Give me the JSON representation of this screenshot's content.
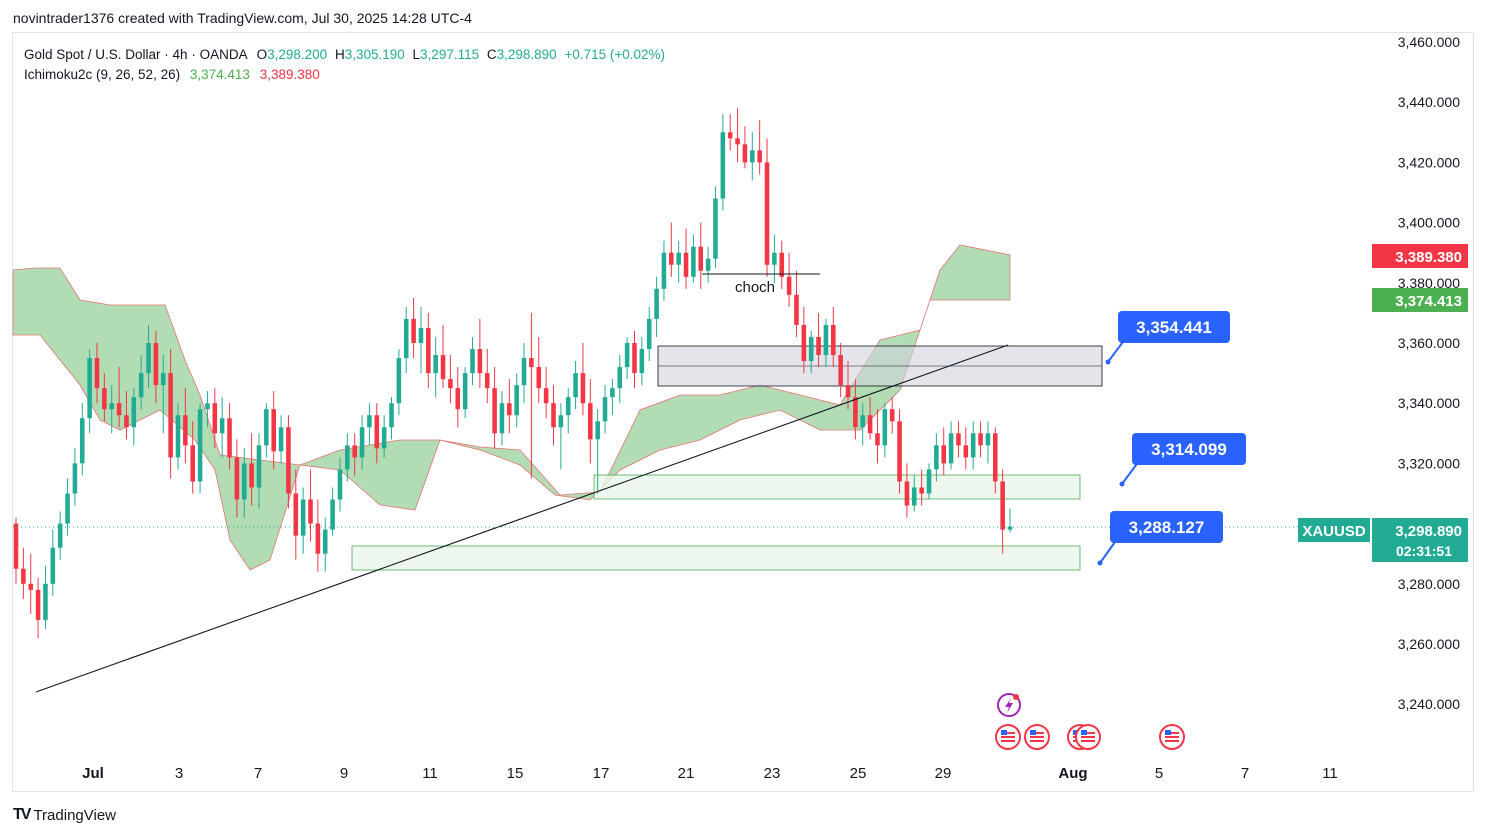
{
  "header": {
    "credit": "novintrader1376 created with TradingView.com, Jul 30, 2025 14:28 UTC-4"
  },
  "legend": {
    "symbol_line": "Gold Spot / U.S. Dollar · 4h · OANDA",
    "o_label": "O",
    "o_value": "3,298.200",
    "h_label": "H",
    "h_value": "3,305.190",
    "l_label": "L",
    "l_value": "3,297.115",
    "c_label": "C",
    "c_value": "3,298.890",
    "change": "+0.715 (+0.02%)",
    "indicator_name": "Ichimoku2c (9, 26, 52, 26)",
    "indicator_a": "3,374.413",
    "indicator_b": "3,389.380"
  },
  "price_axis": {
    "ticks": [
      "3,460.000",
      "3,440.000",
      "3,420.000",
      "3,400.000",
      "3,380.000",
      "3,360.000",
      "3,340.000",
      "3,320.000",
      "3,280.000",
      "3,260.000",
      "3,240.000"
    ],
    "badge_red": "3,389.380",
    "badge_green": "3,374.413",
    "symbol_badge": "XAUUSD",
    "last_price": "3,298.890",
    "countdown": "02:31:51"
  },
  "time_axis": {
    "ticks": [
      "Jul",
      "3",
      "7",
      "9",
      "11",
      "15",
      "17",
      "21",
      "23",
      "25",
      "29",
      "Aug",
      "5",
      "7",
      "11"
    ]
  },
  "annotations": {
    "choch": "choch",
    "callout_1": "3,354.441",
    "callout_2": "3,314.099",
    "callout_3": "3,288.127"
  },
  "footer": {
    "brand": "TradingView",
    "mark": "TV"
  },
  "colors": {
    "up": "#22ab94",
    "down": "#f23645",
    "cloud": "#a5d6a7",
    "zone_green": "#e8f5e9",
    "zone_gray": "#d1d4dc",
    "callout": "#2962ff",
    "badge_red": "#f23645",
    "badge_green": "#4caf50"
  },
  "chart_data": {
    "type": "candlestick",
    "title": "Gold Spot / U.S. Dollar · 4h · OANDA",
    "y_range": [
      3230,
      3465
    ],
    "ohlc_last": {
      "open": 3298.2,
      "high": 3305.19,
      "low": 3297.115,
      "close": 3298.89
    },
    "candles": [
      [
        3300,
        3302,
        3280,
        3285
      ],
      [
        3285,
        3292,
        3275,
        3280
      ],
      [
        3280,
        3290,
        3270,
        3278
      ],
      [
        3278,
        3282,
        3262,
        3268
      ],
      [
        3268,
        3286,
        3265,
        3280
      ],
      [
        3280,
        3298,
        3276,
        3292
      ],
      [
        3292,
        3304,
        3288,
        3300
      ],
      [
        3300,
        3315,
        3296,
        3310
      ],
      [
        3310,
        3325,
        3306,
        3320
      ],
      [
        3320,
        3340,
        3316,
        3335
      ],
      [
        3335,
        3358,
        3330,
        3355
      ],
      [
        3355,
        3360,
        3340,
        3345
      ],
      [
        3345,
        3350,
        3334,
        3338
      ],
      [
        3338,
        3346,
        3330,
        3340
      ],
      [
        3340,
        3352,
        3332,
        3336
      ],
      [
        3336,
        3344,
        3328,
        3332
      ],
      [
        3332,
        3345,
        3326,
        3342
      ],
      [
        3342,
        3356,
        3338,
        3350
      ],
      [
        3350,
        3366,
        3345,
        3360
      ],
      [
        3360,
        3364,
        3340,
        3346
      ],
      [
        3346,
        3356,
        3330,
        3350
      ],
      [
        3350,
        3358,
        3315,
        3322
      ],
      [
        3322,
        3340,
        3318,
        3336
      ],
      [
        3336,
        3345,
        3320,
        3326
      ],
      [
        3326,
        3334,
        3310,
        3314
      ],
      [
        3314,
        3340,
        3310,
        3338
      ],
      [
        3338,
        3344,
        3332,
        3340
      ],
      [
        3340,
        3345,
        3325,
        3330
      ],
      [
        3330,
        3342,
        3322,
        3335
      ],
      [
        3335,
        3340,
        3318,
        3322
      ],
      [
        3322,
        3328,
        3302,
        3308
      ],
      [
        3308,
        3325,
        3302,
        3320
      ],
      [
        3320,
        3330,
        3306,
        3312
      ],
      [
        3312,
        3330,
        3305,
        3326
      ],
      [
        3326,
        3340,
        3322,
        3338
      ],
      [
        3338,
        3344,
        3318,
        3324
      ],
      [
        3324,
        3336,
        3320,
        3332
      ],
      [
        3332,
        3336,
        3305,
        3310
      ],
      [
        3310,
        3318,
        3288,
        3296
      ],
      [
        3296,
        3312,
        3290,
        3308
      ],
      [
        3308,
        3318,
        3294,
        3300
      ],
      [
        3300,
        3308,
        3284,
        3290
      ],
      [
        3290,
        3302,
        3284,
        3298
      ],
      [
        3298,
        3312,
        3296,
        3308
      ],
      [
        3308,
        3322,
        3304,
        3318
      ],
      [
        3318,
        3330,
        3314,
        3326
      ],
      [
        3326,
        3330,
        3316,
        3322
      ],
      [
        3322,
        3336,
        3318,
        3332
      ],
      [
        3332,
        3340,
        3326,
        3336
      ],
      [
        3336,
        3340,
        3320,
        3325
      ],
      [
        3325,
        3336,
        3322,
        3332
      ],
      [
        3332,
        3342,
        3328,
        3340
      ],
      [
        3340,
        3358,
        3336,
        3355
      ],
      [
        3355,
        3372,
        3350,
        3368
      ],
      [
        3368,
        3375,
        3355,
        3360
      ],
      [
        3360,
        3372,
        3350,
        3365
      ],
      [
        3365,
        3370,
        3345,
        3350
      ],
      [
        3350,
        3362,
        3342,
        3356
      ],
      [
        3356,
        3366,
        3345,
        3348
      ],
      [
        3348,
        3356,
        3340,
        3345
      ],
      [
        3345,
        3352,
        3332,
        3338
      ],
      [
        3338,
        3352,
        3335,
        3350
      ],
      [
        3350,
        3362,
        3346,
        3358
      ],
      [
        3358,
        3368,
        3345,
        3350
      ],
      [
        3350,
        3358,
        3340,
        3345
      ],
      [
        3345,
        3352,
        3325,
        3330
      ],
      [
        3330,
        3344,
        3326,
        3340
      ],
      [
        3340,
        3348,
        3330,
        3336
      ],
      [
        3336,
        3350,
        3332,
        3346
      ],
      [
        3346,
        3360,
        3340,
        3355
      ],
      [
        3355,
        3370,
        3315,
        3352
      ],
      [
        3352,
        3362,
        3340,
        3345
      ],
      [
        3345,
        3352,
        3335,
        3340
      ],
      [
        3340,
        3346,
        3326,
        3332
      ],
      [
        3332,
        3340,
        3318,
        3336
      ],
      [
        3336,
        3345,
        3330,
        3342
      ],
      [
        3342,
        3354,
        3338,
        3350
      ],
      [
        3350,
        3360,
        3336,
        3340
      ],
      [
        3340,
        3348,
        3320,
        3328
      ],
      [
        3328,
        3338,
        3310,
        3334
      ],
      [
        3334,
        3346,
        3330,
        3342
      ],
      [
        3342,
        3348,
        3336,
        3345
      ],
      [
        3345,
        3356,
        3340,
        3352
      ],
      [
        3352,
        3362,
        3348,
        3360
      ],
      [
        3360,
        3364,
        3345,
        3350
      ],
      [
        3350,
        3362,
        3346,
        3358
      ],
      [
        3358,
        3372,
        3354,
        3368
      ],
      [
        3368,
        3382,
        3362,
        3378
      ],
      [
        3378,
        3394,
        3374,
        3390
      ],
      [
        3390,
        3400,
        3382,
        3386
      ],
      [
        3386,
        3394,
        3380,
        3390
      ],
      [
        3390,
        3398,
        3378,
        3382
      ],
      [
        3382,
        3396,
        3380,
        3392
      ],
      [
        3392,
        3400,
        3378,
        3384
      ],
      [
        3384,
        3392,
        3380,
        3388
      ],
      [
        3388,
        3412,
        3385,
        3408
      ],
      [
        3408,
        3436,
        3404,
        3430
      ],
      [
        3430,
        3436,
        3424,
        3428
      ],
      [
        3428,
        3438,
        3420,
        3426
      ],
      [
        3426,
        3432,
        3418,
        3420
      ],
      [
        3420,
        3430,
        3414,
        3424
      ],
      [
        3424,
        3434,
        3416,
        3420
      ],
      [
        3420,
        3428,
        3382,
        3386
      ],
      [
        3386,
        3396,
        3380,
        3390
      ],
      [
        3390,
        3394,
        3378,
        3382
      ],
      [
        3382,
        3390,
        3372,
        3376
      ],
      [
        3376,
        3384,
        3362,
        3366
      ],
      [
        3366,
        3372,
        3350,
        3354
      ],
      [
        3354,
        3364,
        3350,
        3362
      ],
      [
        3362,
        3370,
        3352,
        3356
      ],
      [
        3356,
        3368,
        3352,
        3366
      ],
      [
        3366,
        3372,
        3352,
        3356
      ],
      [
        3356,
        3360,
        3342,
        3346
      ],
      [
        3346,
        3354,
        3338,
        3342
      ],
      [
        3342,
        3348,
        3328,
        3332
      ],
      [
        3332,
        3340,
        3326,
        3336
      ],
      [
        3336,
        3342,
        3328,
        3330
      ],
      [
        3330,
        3338,
        3320,
        3326
      ],
      [
        3326,
        3340,
        3322,
        3338
      ],
      [
        3338,
        3342,
        3330,
        3334
      ],
      [
        3334,
        3338,
        3310,
        3314
      ],
      [
        3314,
        3320,
        3302,
        3306
      ],
      [
        3306,
        3316,
        3304,
        3312
      ],
      [
        3312,
        3318,
        3306,
        3310
      ],
      [
        3310,
        3320,
        3308,
        3318
      ],
      [
        3318,
        3330,
        3314,
        3326
      ],
      [
        3326,
        3332,
        3316,
        3320
      ],
      [
        3320,
        3334,
        3318,
        3330
      ],
      [
        3330,
        3334,
        3322,
        3326
      ],
      [
        3326,
        3332,
        3318,
        3322
      ],
      [
        3322,
        3334,
        3318,
        3330
      ],
      [
        3330,
        3334,
        3322,
        3326
      ],
      [
        3326,
        3334,
        3320,
        3330
      ],
      [
        3330,
        3332,
        3310,
        3314
      ],
      [
        3314,
        3318,
        3290,
        3298
      ],
      [
        3298,
        3305,
        3297,
        3299
      ]
    ]
  }
}
